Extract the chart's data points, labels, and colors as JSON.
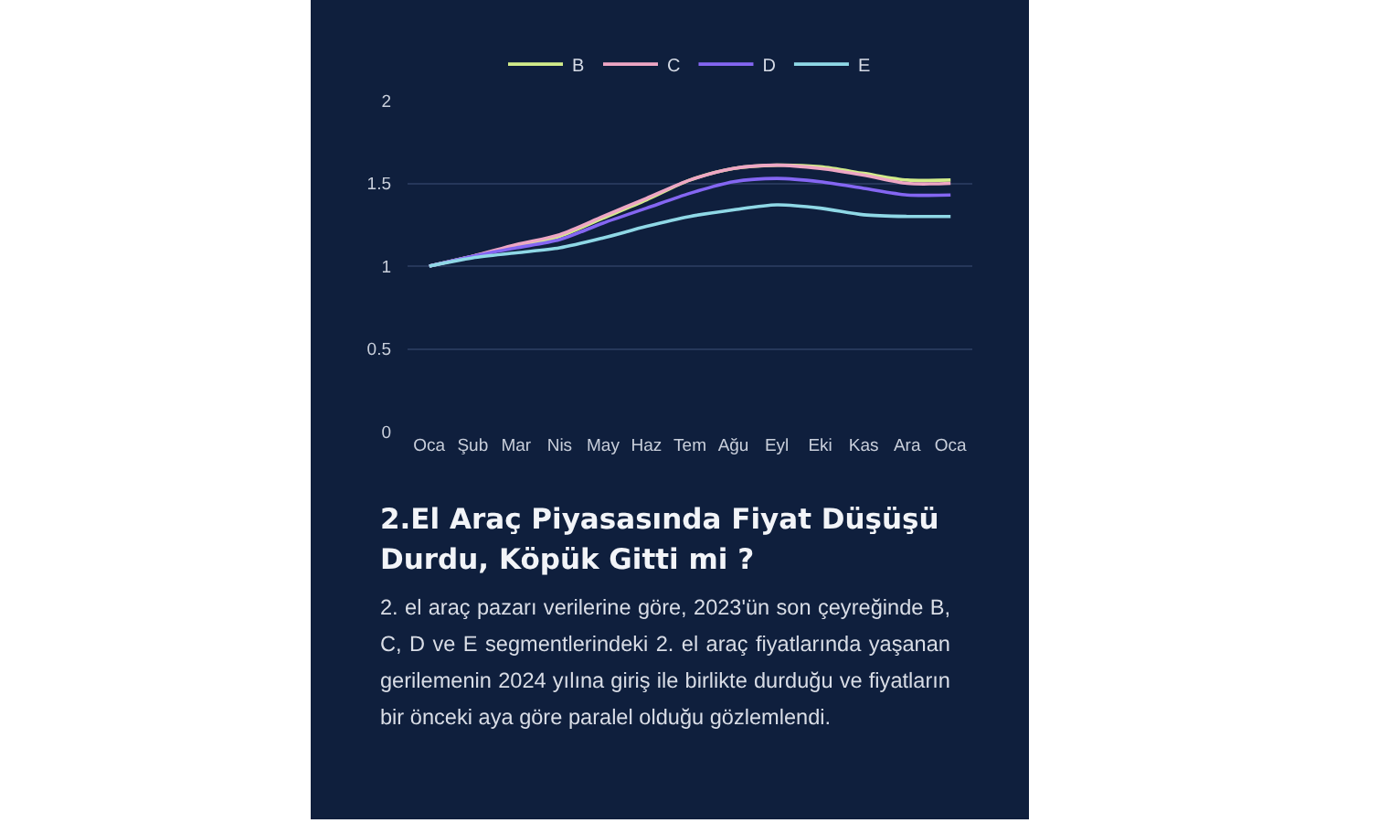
{
  "chart_data": {
    "type": "line",
    "title": "2.El Araç Piyasasında Fiyat Düşüşü Durdu, Köpük Gitti mi ?",
    "annotations": [
      "2. el araç pazarı verilerine göre, 2023'ün son çeyreğinde B, C, D ve E segmentlerindeki 2. el araç fiyatlarında yaşanan gerilemenin 2024 yılına giriş ile birlikte durduğu ve fiyatların bir önceki aya göre paralel olduğu gözlemlendi."
    ],
    "categories": [
      "Oca",
      "Şub",
      "Mar",
      "Nis",
      "May",
      "Haz",
      "Tem",
      "Ağu",
      "Eyl",
      "Eki",
      "Kas",
      "Ara",
      "Oca"
    ],
    "series": [
      {
        "name": "B",
        "color": "#d2ec8a",
        "values": [
          1.0,
          1.06,
          1.12,
          1.18,
          1.29,
          1.4,
          1.52,
          1.59,
          1.61,
          1.6,
          1.56,
          1.52,
          1.52
        ]
      },
      {
        "name": "C",
        "color": "#eea6c4",
        "values": [
          1.0,
          1.06,
          1.13,
          1.19,
          1.3,
          1.41,
          1.52,
          1.59,
          1.61,
          1.59,
          1.55,
          1.5,
          1.5
        ]
      },
      {
        "name": "D",
        "color": "#8466f2",
        "values": [
          1.0,
          1.06,
          1.11,
          1.16,
          1.26,
          1.35,
          1.44,
          1.51,
          1.53,
          1.51,
          1.47,
          1.43,
          1.43
        ]
      },
      {
        "name": "E",
        "color": "#8fd8e6",
        "values": [
          1.0,
          1.05,
          1.08,
          1.11,
          1.17,
          1.24,
          1.3,
          1.34,
          1.37,
          1.35,
          1.31,
          1.3,
          1.3
        ]
      }
    ],
    "ylim": [
      0,
      2
    ],
    "yticks": [
      0,
      0.5,
      1,
      1.5,
      2
    ],
    "grid": "y",
    "legend": "top"
  }
}
